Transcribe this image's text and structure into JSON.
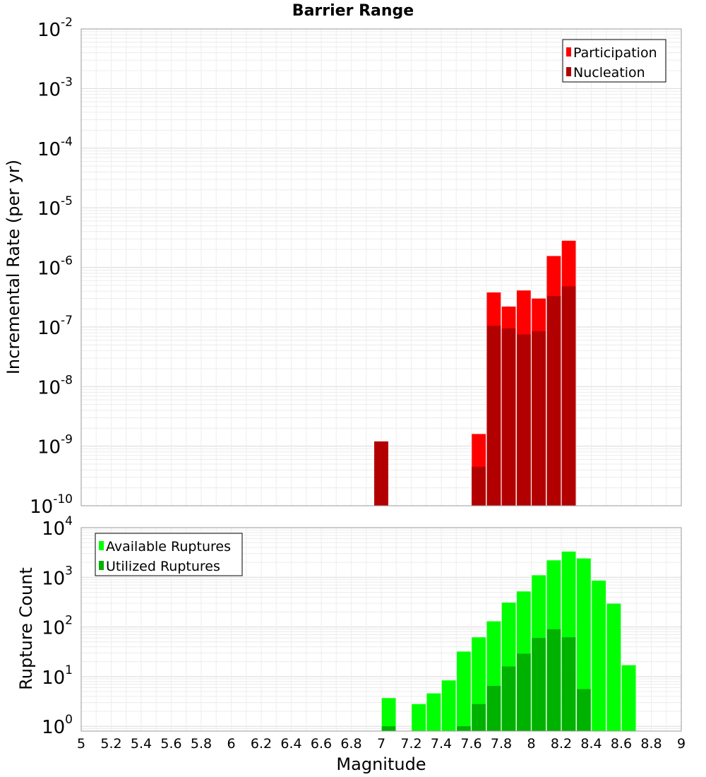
{
  "title": "Barrier Range",
  "chart_data": [
    {
      "type": "bar",
      "panel": "top",
      "ylabel": "Incremental Rate (per yr)",
      "yscale": "log",
      "ylim": [
        1e-10,
        0.01
      ],
      "y_tick_labels": [
        {
          "base": "10",
          "exp": "-10"
        },
        {
          "base": "10",
          "exp": "-9"
        },
        {
          "base": "10",
          "exp": "-8"
        },
        {
          "base": "10",
          "exp": "-7"
        },
        {
          "base": "10",
          "exp": "-6"
        },
        {
          "base": "10",
          "exp": "-5"
        },
        {
          "base": "10",
          "exp": "-4"
        },
        {
          "base": "10",
          "exp": "-3"
        },
        {
          "base": "10",
          "exp": "-2"
        }
      ],
      "legend": {
        "placement": "top-right",
        "entries": [
          "Participation",
          "Nucleation"
        ]
      },
      "series": [
        {
          "name": "Participation",
          "color": "#ff0000",
          "x": [
            7.0,
            7.65,
            7.75,
            7.85,
            7.95,
            8.05,
            8.15,
            8.25
          ],
          "values": [
            1.2e-09,
            1.6e-09,
            3.8e-07,
            2.2e-07,
            4.1e-07,
            3e-07,
            1.55e-06,
            2.8e-06
          ]
        },
        {
          "name": "Nucleation",
          "color": "#b20000",
          "x": [
            7.0,
            7.65,
            7.75,
            7.85,
            7.95,
            8.05,
            8.15,
            8.25
          ],
          "values": [
            1.2e-09,
            4.5e-10,
            1.05e-07,
            9.5e-08,
            7.5e-08,
            8.5e-08,
            3.3e-07,
            4.8e-07
          ]
        }
      ]
    },
    {
      "type": "bar",
      "panel": "bottom",
      "xlabel": "Magnitude",
      "ylabel": "Rupture Count",
      "yscale": "log",
      "xlim": [
        5,
        9
      ],
      "ylim": [
        0.8,
        10000
      ],
      "x_tick_labels": [
        "5",
        "5.2",
        "5.4",
        "5.6",
        "5.8",
        "6",
        "6.2",
        "6.4",
        "6.6",
        "6.8",
        "7",
        "7.2",
        "7.4",
        "7.6",
        "7.8",
        "8",
        "8.2",
        "8.4",
        "8.6",
        "8.8",
        "9"
      ],
      "y_tick_labels": [
        {
          "base": "10",
          "exp": "0"
        },
        {
          "base": "10",
          "exp": "1"
        },
        {
          "base": "10",
          "exp": "2"
        },
        {
          "base": "10",
          "exp": "3"
        },
        {
          "base": "10",
          "exp": "4"
        }
      ],
      "legend": {
        "placement": "top-left",
        "entries": [
          "Available Ruptures",
          "Utilized Ruptures"
        ]
      },
      "series": [
        {
          "name": "Available Ruptures",
          "color": "#00ff00",
          "x": [
            7.05,
            7.25,
            7.35,
            7.45,
            7.55,
            7.65,
            7.75,
            7.85,
            7.95,
            8.05,
            8.15,
            8.25,
            8.35,
            8.45,
            8.55,
            8.65
          ],
          "values": [
            3.7,
            2.8,
            4.6,
            8.4,
            32,
            62,
            130,
            310,
            520,
            1100,
            2200,
            3300,
            2400,
            860,
            295,
            17
          ]
        },
        {
          "name": "Utilized Ruptures",
          "color": "#00b200",
          "x": [
            7.05,
            7.55,
            7.65,
            7.75,
            7.85,
            7.95,
            8.05,
            8.15,
            8.25,
            8.35
          ],
          "values": [
            1.0,
            1.0,
            2.8,
            6.5,
            16,
            29,
            60,
            90,
            62,
            5.6
          ]
        }
      ]
    }
  ]
}
